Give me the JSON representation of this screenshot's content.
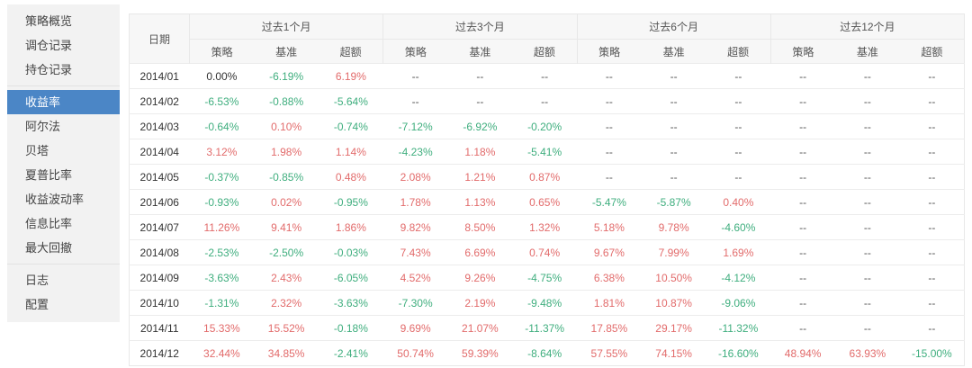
{
  "sidebar": {
    "groups": [
      {
        "items": [
          {
            "name": "strategy-overview",
            "label": "策略概览",
            "active": false
          },
          {
            "name": "rebalance-records",
            "label": "调仓记录",
            "active": false
          },
          {
            "name": "position-records",
            "label": "持仓记录",
            "active": false
          }
        ]
      },
      {
        "items": [
          {
            "name": "returns",
            "label": "收益率",
            "active": true
          },
          {
            "name": "alpha",
            "label": "阿尔法",
            "active": false
          },
          {
            "name": "beta",
            "label": "贝塔",
            "active": false
          },
          {
            "name": "sharpe-ratio",
            "label": "夏普比率",
            "active": false
          },
          {
            "name": "return-volatility",
            "label": "收益波动率",
            "active": false
          },
          {
            "name": "information-ratio",
            "label": "信息比率",
            "active": false
          },
          {
            "name": "max-drawdown",
            "label": "最大回撤",
            "active": false
          }
        ]
      },
      {
        "items": [
          {
            "name": "logs",
            "label": "日志",
            "active": false
          },
          {
            "name": "settings",
            "label": "配置",
            "active": false
          }
        ]
      }
    ]
  },
  "table": {
    "date_header": "日期",
    "groups": [
      "过去1个月",
      "过去3个月",
      "过去6个月",
      "过去12个月"
    ],
    "sub_headers": [
      "策略",
      "基准",
      "超额"
    ],
    "rows": [
      {
        "date": "2014/01",
        "values": [
          "0.00%",
          "-6.19%",
          "6.19%",
          "--",
          "--",
          "--",
          "--",
          "--",
          "--",
          "--",
          "--",
          "--"
        ]
      },
      {
        "date": "2014/02",
        "values": [
          "-6.53%",
          "-0.88%",
          "-5.64%",
          "--",
          "--",
          "--",
          "--",
          "--",
          "--",
          "--",
          "--",
          "--"
        ]
      },
      {
        "date": "2014/03",
        "values": [
          "-0.64%",
          "0.10%",
          "-0.74%",
          "-7.12%",
          "-6.92%",
          "-0.20%",
          "--",
          "--",
          "--",
          "--",
          "--",
          "--"
        ]
      },
      {
        "date": "2014/04",
        "values": [
          "3.12%",
          "1.98%",
          "1.14%",
          "-4.23%",
          "1.18%",
          "-5.41%",
          "--",
          "--",
          "--",
          "--",
          "--",
          "--"
        ]
      },
      {
        "date": "2014/05",
        "values": [
          "-0.37%",
          "-0.85%",
          "0.48%",
          "2.08%",
          "1.21%",
          "0.87%",
          "--",
          "--",
          "--",
          "--",
          "--",
          "--"
        ]
      },
      {
        "date": "2014/06",
        "values": [
          "-0.93%",
          "0.02%",
          "-0.95%",
          "1.78%",
          "1.13%",
          "0.65%",
          "-5.47%",
          "-5.87%",
          "0.40%",
          "--",
          "--",
          "--"
        ]
      },
      {
        "date": "2014/07",
        "values": [
          "11.26%",
          "9.41%",
          "1.86%",
          "9.82%",
          "8.50%",
          "1.32%",
          "5.18%",
          "9.78%",
          "-4.60%",
          "--",
          "--",
          "--"
        ]
      },
      {
        "date": "2014/08",
        "values": [
          "-2.53%",
          "-2.50%",
          "-0.03%",
          "7.43%",
          "6.69%",
          "0.74%",
          "9.67%",
          "7.99%",
          "1.69%",
          "--",
          "--",
          "--"
        ]
      },
      {
        "date": "2014/09",
        "values": [
          "-3.63%",
          "2.43%",
          "-6.05%",
          "4.52%",
          "9.26%",
          "-4.75%",
          "6.38%",
          "10.50%",
          "-4.12%",
          "--",
          "--",
          "--"
        ]
      },
      {
        "date": "2014/10",
        "values": [
          "-1.31%",
          "2.32%",
          "-3.63%",
          "-7.30%",
          "2.19%",
          "-9.48%",
          "1.81%",
          "10.87%",
          "-9.06%",
          "--",
          "--",
          "--"
        ]
      },
      {
        "date": "2014/11",
        "values": [
          "15.33%",
          "15.52%",
          "-0.18%",
          "9.69%",
          "21.07%",
          "-11.37%",
          "17.85%",
          "29.17%",
          "-11.32%",
          "--",
          "--",
          "--"
        ]
      },
      {
        "date": "2014/12",
        "values": [
          "32.44%",
          "34.85%",
          "-2.41%",
          "50.74%",
          "59.39%",
          "-8.64%",
          "57.55%",
          "74.15%",
          "-16.60%",
          "48.94%",
          "63.93%",
          "-15.00%"
        ]
      }
    ]
  },
  "colors": {
    "positive": "#e26b6b",
    "negative": "#3fae7e",
    "neutral": "#333333",
    "na": "#555555",
    "active_bg": "#4b86c6",
    "active_text": "#ffffff",
    "sidebar_bg": "#f2f2f2",
    "header_bg": "#f7f7f7",
    "border": "#e8e8e8"
  }
}
